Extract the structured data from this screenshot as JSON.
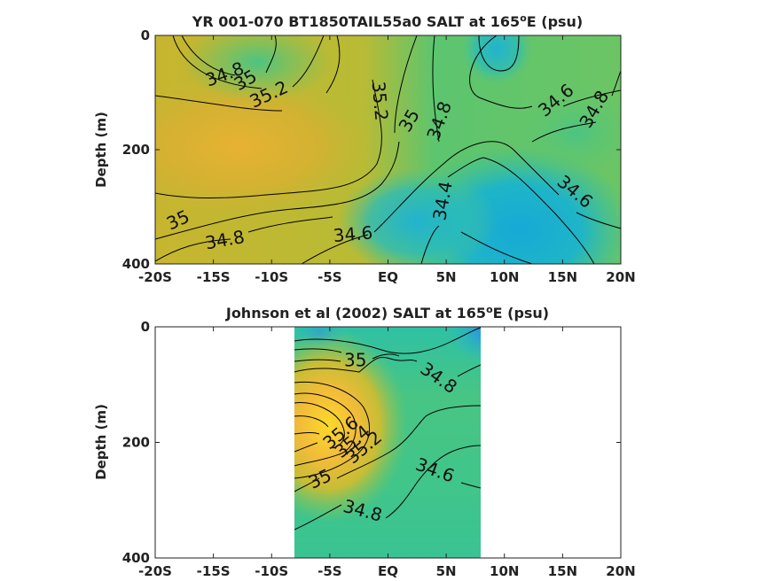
{
  "chart_data": [
    {
      "type": "heatmap",
      "title_main": "YR 001-070 BT1850TAIL55a0 SALT at 165",
      "title_sup": "o",
      "title_tail": "E (psu)",
      "ylabel": "Depth (m)",
      "xlim": [
        -20,
        20
      ],
      "ylim": [
        0,
        400
      ],
      "y_reversed": true,
      "x_ticks": [
        {
          "v": -20,
          "label": "-20S"
        },
        {
          "v": -15,
          "label": "-15S"
        },
        {
          "v": -10,
          "label": "-10S"
        },
        {
          "v": -5,
          "label": "-5S"
        },
        {
          "v": 0,
          "label": "EQ"
        },
        {
          "v": 5,
          "label": "5N"
        },
        {
          "v": 10,
          "label": "10N"
        },
        {
          "v": 15,
          "label": "15N"
        },
        {
          "v": 20,
          "label": "20N"
        }
      ],
      "y_ticks": [
        {
          "v": 0,
          "label": "0"
        },
        {
          "v": 200,
          "label": "200"
        },
        {
          "v": 400,
          "label": "400"
        }
      ],
      "data_xrange": [
        -20,
        20
      ],
      "contour_labels": [
        {
          "text": "34.8",
          "x": -14.0,
          "y": 70,
          "rot": -20
        },
        {
          "text": "35",
          "x": -12.2,
          "y": 80,
          "rot": -30
        },
        {
          "text": "35.2",
          "x": -10.2,
          "y": 105,
          "rot": -25
        },
        {
          "text": "35.2",
          "x": -0.8,
          "y": 115,
          "rot": 85
        },
        {
          "text": "35",
          "x": 1.9,
          "y": 150,
          "rot": -60
        },
        {
          "text": "34.8",
          "x": 4.5,
          "y": 150,
          "rot": -70
        },
        {
          "text": "34.6",
          "x": 14.5,
          "y": 115,
          "rot": -40
        },
        {
          "text": "34.8",
          "x": 17.8,
          "y": 130,
          "rot": -60
        },
        {
          "text": "34.6",
          "x": 16.0,
          "y": 275,
          "rot": 40
        },
        {
          "text": "34.4",
          "x": 4.8,
          "y": 290,
          "rot": -80
        },
        {
          "text": "34.6",
          "x": -3.0,
          "y": 350,
          "rot": -5
        },
        {
          "text": "34.8",
          "x": -14.0,
          "y": 360,
          "rot": -10
        },
        {
          "text": "35",
          "x": -18.0,
          "y": 325,
          "rot": -25
        }
      ]
    },
    {
      "type": "heatmap",
      "title_main": "Johnson et al (2002) SALT at 165",
      "title_sup": "o",
      "title_tail": "E (psu)",
      "ylabel": "Depth (m)",
      "xlim": [
        -20,
        20
      ],
      "ylim": [
        0,
        400
      ],
      "y_reversed": true,
      "x_ticks": [
        {
          "v": -20,
          "label": "-20S"
        },
        {
          "v": -15,
          "label": "-15S"
        },
        {
          "v": -10,
          "label": "-10S"
        },
        {
          "v": -5,
          "label": "-5S"
        },
        {
          "v": 0,
          "label": "EQ"
        },
        {
          "v": 5,
          "label": "5N"
        },
        {
          "v": 10,
          "label": "10N"
        },
        {
          "v": 15,
          "label": "15N"
        },
        {
          "v": 20,
          "label": "20N"
        }
      ],
      "y_ticks": [
        {
          "v": 0,
          "label": "0"
        },
        {
          "v": 200,
          "label": "200"
        },
        {
          "v": 400,
          "label": "400"
        }
      ],
      "data_xrange": [
        -8,
        8
      ],
      "contour_labels": [
        {
          "text": "35",
          "x": -2.8,
          "y": 60,
          "rot": 0
        },
        {
          "text": "34.8",
          "x": 4.3,
          "y": 90,
          "rot": 35
        },
        {
          "text": "35.6",
          "x": -4.0,
          "y": 185,
          "rot": -40
        },
        {
          "text": "35.4",
          "x": -3.0,
          "y": 200,
          "rot": -40
        },
        {
          "text": "35.2",
          "x": -2.0,
          "y": 210,
          "rot": -40
        },
        {
          "text": "35",
          "x": -5.8,
          "y": 265,
          "rot": -25
        },
        {
          "text": "34.6",
          "x": 4.0,
          "y": 250,
          "rot": 20
        },
        {
          "text": "34.8",
          "x": -2.2,
          "y": 320,
          "rot": 15
        }
      ]
    }
  ]
}
